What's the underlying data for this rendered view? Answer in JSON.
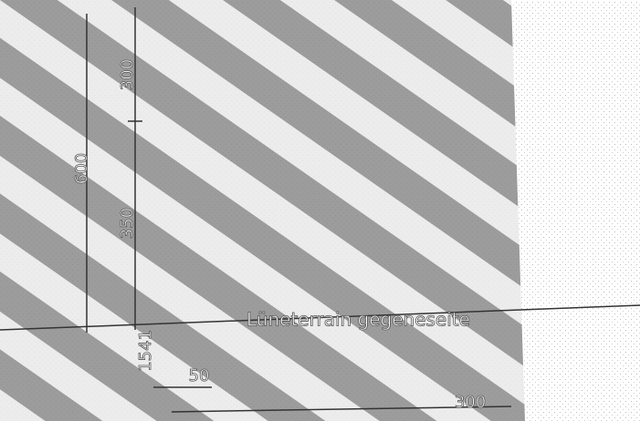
{
  "drawing": {
    "dimensions": [
      {
        "label": "600"
      },
      {
        "label": "300"
      },
      {
        "label": "350"
      },
      {
        "label": "1541"
      },
      {
        "label": "50"
      },
      {
        "label": "300"
      }
    ],
    "note": "Lüneterrain gegeneseite"
  }
}
